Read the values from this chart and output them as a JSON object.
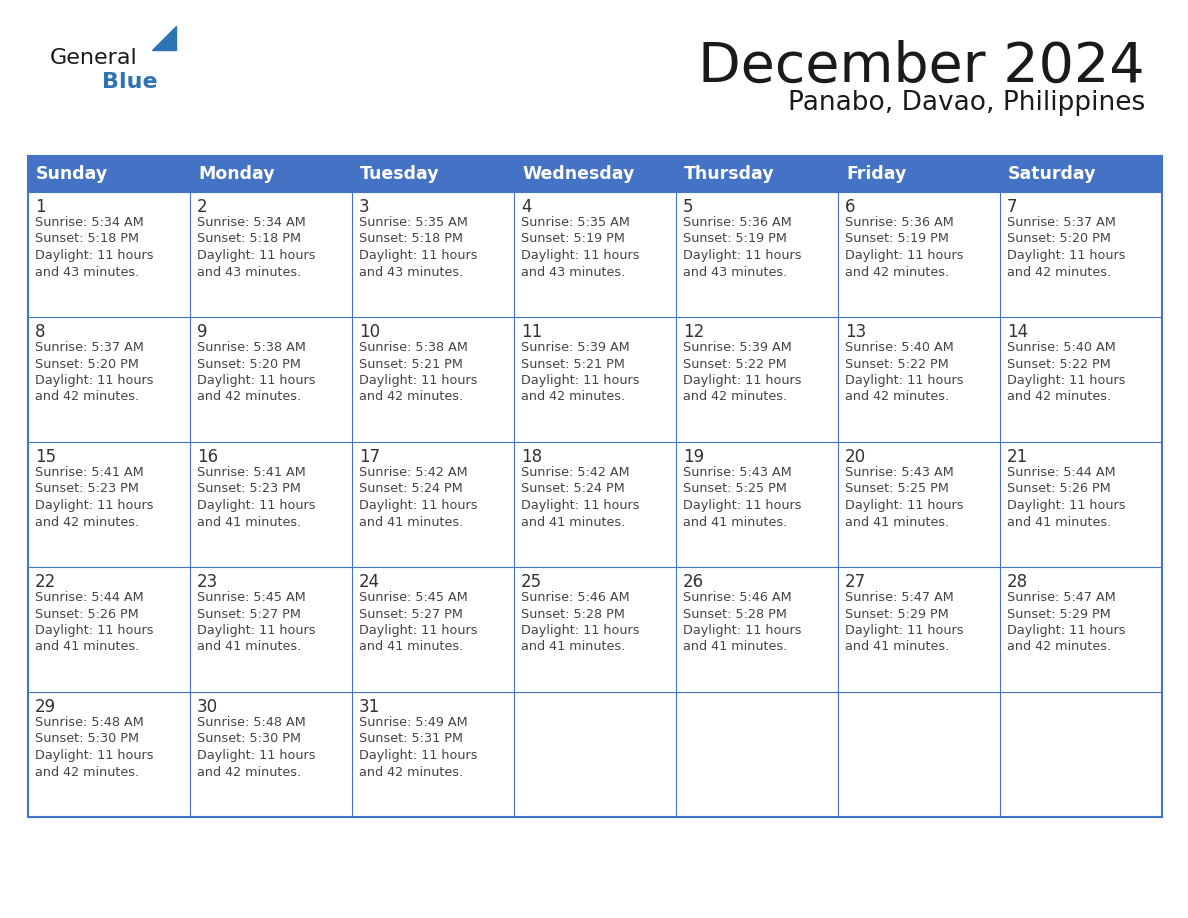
{
  "title": "December 2024",
  "subtitle": "Panabo, Davao, Philippines",
  "days_of_week": [
    "Sunday",
    "Monday",
    "Tuesday",
    "Wednesday",
    "Thursday",
    "Friday",
    "Saturday"
  ],
  "header_bg_color": "#4472C4",
  "header_text_color": "#FFFFFF",
  "cell_border_color": "#4472C4",
  "day_num_color": "#333333",
  "cell_text_color": "#444444",
  "title_color": "#1a1a1a",
  "subtitle_color": "#1a1a1a",
  "logo_general_color": "#1a1a1a",
  "logo_blue_color": "#2e74b5",
  "calendar_data": [
    [
      {
        "day": 1,
        "sunrise": "5:34 AM",
        "sunset": "5:18 PM",
        "daylight_hours": 11,
        "daylight_minutes": "43 minutes."
      },
      {
        "day": 2,
        "sunrise": "5:34 AM",
        "sunset": "5:18 PM",
        "daylight_hours": 11,
        "daylight_minutes": "43 minutes."
      },
      {
        "day": 3,
        "sunrise": "5:35 AM",
        "sunset": "5:18 PM",
        "daylight_hours": 11,
        "daylight_minutes": "43 minutes."
      },
      {
        "day": 4,
        "sunrise": "5:35 AM",
        "sunset": "5:19 PM",
        "daylight_hours": 11,
        "daylight_minutes": "43 minutes."
      },
      {
        "day": 5,
        "sunrise": "5:36 AM",
        "sunset": "5:19 PM",
        "daylight_hours": 11,
        "daylight_minutes": "43 minutes."
      },
      {
        "day": 6,
        "sunrise": "5:36 AM",
        "sunset": "5:19 PM",
        "daylight_hours": 11,
        "daylight_minutes": "42 minutes."
      },
      {
        "day": 7,
        "sunrise": "5:37 AM",
        "sunset": "5:20 PM",
        "daylight_hours": 11,
        "daylight_minutes": "42 minutes."
      }
    ],
    [
      {
        "day": 8,
        "sunrise": "5:37 AM",
        "sunset": "5:20 PM",
        "daylight_hours": 11,
        "daylight_minutes": "42 minutes."
      },
      {
        "day": 9,
        "sunrise": "5:38 AM",
        "sunset": "5:20 PM",
        "daylight_hours": 11,
        "daylight_minutes": "42 minutes."
      },
      {
        "day": 10,
        "sunrise": "5:38 AM",
        "sunset": "5:21 PM",
        "daylight_hours": 11,
        "daylight_minutes": "42 minutes."
      },
      {
        "day": 11,
        "sunrise": "5:39 AM",
        "sunset": "5:21 PM",
        "daylight_hours": 11,
        "daylight_minutes": "42 minutes."
      },
      {
        "day": 12,
        "sunrise": "5:39 AM",
        "sunset": "5:22 PM",
        "daylight_hours": 11,
        "daylight_minutes": "42 minutes."
      },
      {
        "day": 13,
        "sunrise": "5:40 AM",
        "sunset": "5:22 PM",
        "daylight_hours": 11,
        "daylight_minutes": "42 minutes."
      },
      {
        "day": 14,
        "sunrise": "5:40 AM",
        "sunset": "5:22 PM",
        "daylight_hours": 11,
        "daylight_minutes": "42 minutes."
      }
    ],
    [
      {
        "day": 15,
        "sunrise": "5:41 AM",
        "sunset": "5:23 PM",
        "daylight_hours": 11,
        "daylight_minutes": "42 minutes."
      },
      {
        "day": 16,
        "sunrise": "5:41 AM",
        "sunset": "5:23 PM",
        "daylight_hours": 11,
        "daylight_minutes": "41 minutes."
      },
      {
        "day": 17,
        "sunrise": "5:42 AM",
        "sunset": "5:24 PM",
        "daylight_hours": 11,
        "daylight_minutes": "41 minutes."
      },
      {
        "day": 18,
        "sunrise": "5:42 AM",
        "sunset": "5:24 PM",
        "daylight_hours": 11,
        "daylight_minutes": "41 minutes."
      },
      {
        "day": 19,
        "sunrise": "5:43 AM",
        "sunset": "5:25 PM",
        "daylight_hours": 11,
        "daylight_minutes": "41 minutes."
      },
      {
        "day": 20,
        "sunrise": "5:43 AM",
        "sunset": "5:25 PM",
        "daylight_hours": 11,
        "daylight_minutes": "41 minutes."
      },
      {
        "day": 21,
        "sunrise": "5:44 AM",
        "sunset": "5:26 PM",
        "daylight_hours": 11,
        "daylight_minutes": "41 minutes."
      }
    ],
    [
      {
        "day": 22,
        "sunrise": "5:44 AM",
        "sunset": "5:26 PM",
        "daylight_hours": 11,
        "daylight_minutes": "41 minutes."
      },
      {
        "day": 23,
        "sunrise": "5:45 AM",
        "sunset": "5:27 PM",
        "daylight_hours": 11,
        "daylight_minutes": "41 minutes."
      },
      {
        "day": 24,
        "sunrise": "5:45 AM",
        "sunset": "5:27 PM",
        "daylight_hours": 11,
        "daylight_minutes": "41 minutes."
      },
      {
        "day": 25,
        "sunrise": "5:46 AM",
        "sunset": "5:28 PM",
        "daylight_hours": 11,
        "daylight_minutes": "41 minutes."
      },
      {
        "day": 26,
        "sunrise": "5:46 AM",
        "sunset": "5:28 PM",
        "daylight_hours": 11,
        "daylight_minutes": "41 minutes."
      },
      {
        "day": 27,
        "sunrise": "5:47 AM",
        "sunset": "5:29 PM",
        "daylight_hours": 11,
        "daylight_minutes": "41 minutes."
      },
      {
        "day": 28,
        "sunrise": "5:47 AM",
        "sunset": "5:29 PM",
        "daylight_hours": 11,
        "daylight_minutes": "42 minutes."
      }
    ],
    [
      {
        "day": 29,
        "sunrise": "5:48 AM",
        "sunset": "5:30 PM",
        "daylight_hours": 11,
        "daylight_minutes": "42 minutes."
      },
      {
        "day": 30,
        "sunrise": "5:48 AM",
        "sunset": "5:30 PM",
        "daylight_hours": 11,
        "daylight_minutes": "42 minutes."
      },
      {
        "day": 31,
        "sunrise": "5:49 AM",
        "sunset": "5:31 PM",
        "daylight_hours": 11,
        "daylight_minutes": "42 minutes."
      },
      null,
      null,
      null,
      null
    ]
  ]
}
